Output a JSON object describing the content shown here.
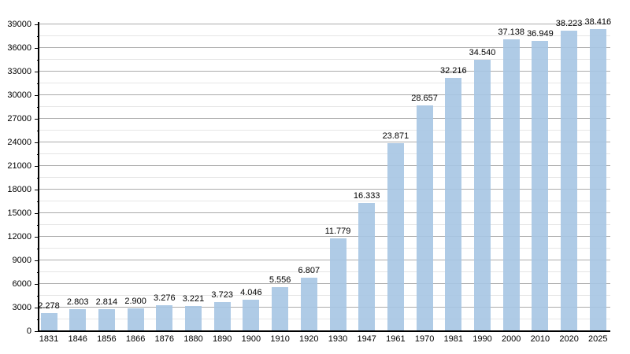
{
  "chart_data": {
    "type": "bar",
    "title": "",
    "xlabel": "",
    "ylabel": "",
    "categories": [
      "1831",
      "1846",
      "1856",
      "1866",
      "1876",
      "1880",
      "1890",
      "1900",
      "1910",
      "1920",
      "1930",
      "1947",
      "1961",
      "1970",
      "1981",
      "1990",
      "2000",
      "2010",
      "2020",
      "2025"
    ],
    "values": [
      2278,
      2803,
      2814,
      2900,
      3276,
      3221,
      3723,
      4046,
      5556,
      6807,
      11779,
      16333,
      23871,
      28657,
      32216,
      34540,
      37138,
      36949,
      38223,
      38416
    ],
    "value_labels": [
      "2.278",
      "2.803",
      "2.814",
      "2.900",
      "3.276",
      "3.221",
      "3.723",
      "4.046",
      "5.556",
      "6.807",
      "11.779",
      "16.333",
      "23.871",
      "28.657",
      "32.216",
      "34.540",
      "37.138",
      "36.949",
      "38.223",
      "38.416"
    ],
    "y_tick_labels": [
      "0",
      "3000",
      "6000",
      "9000",
      "12000",
      "15000",
      "18000",
      "21000",
      "24000",
      "27000",
      "30000",
      "33000",
      "36000",
      "39000"
    ],
    "ylim": [
      0,
      39000
    ],
    "y_major_step": 3000,
    "y_minor_step": 1500,
    "grid": "on",
    "legend": "none",
    "colors": {
      "bar_fill": "rgba(166,197,227,0.9)",
      "bar_fill_hex_approx": "#aecbe4",
      "major_grid": "#ababab",
      "minor_grid": "#e6e6e6",
      "axis": "#000000",
      "text": "#000000",
      "background": "#ffffff"
    }
  }
}
